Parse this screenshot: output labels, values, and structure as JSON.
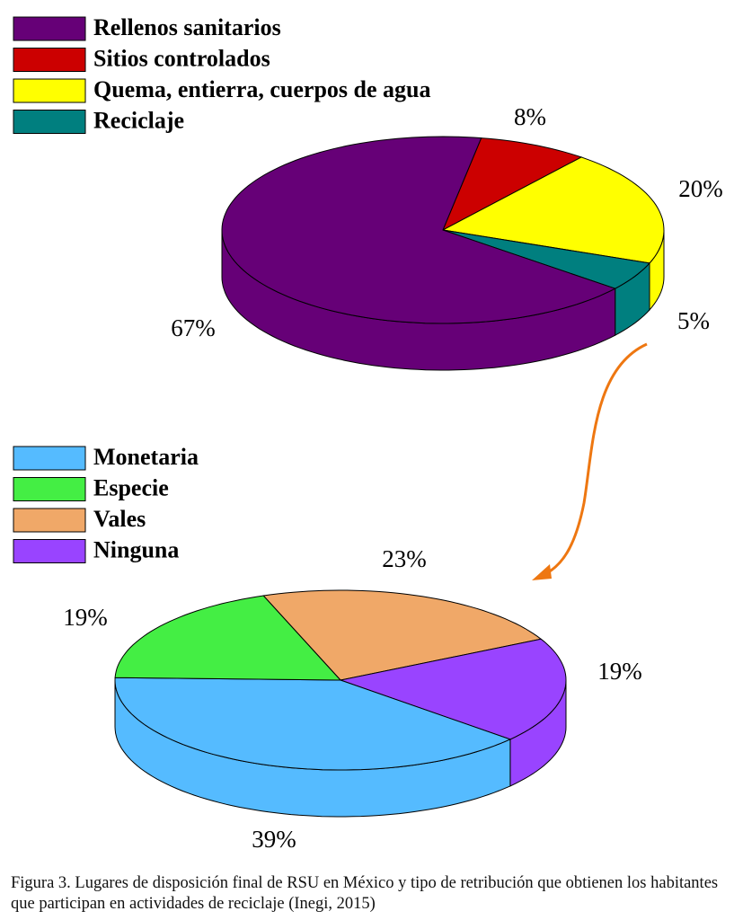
{
  "chart_data": [
    {
      "type": "pie",
      "categories": [
        "Rellenos sanitarios",
        "Sitios controlados",
        "Quema, entierra, cuerpos de agua",
        "Reciclaje"
      ],
      "values": [
        67,
        8,
        20,
        5
      ],
      "value_labels": [
        "67%",
        "8%",
        "20%",
        "5%"
      ],
      "colors": [
        "#660077",
        "#cc0000",
        "#ffff00",
        "#007f7f"
      ]
    },
    {
      "type": "pie",
      "categories": [
        "Monetaria",
        "Especie",
        "Vales",
        "Ninguna"
      ],
      "values": [
        39,
        19,
        23,
        19
      ],
      "value_labels": [
        "39%",
        "19%",
        "23%",
        "19%"
      ],
      "colors": [
        "#55bbff",
        "#44ee44",
        "#f0a868",
        "#9944ff"
      ]
    }
  ],
  "caption": "Figura 3. Lugares de disposición final de RSU en México y tipo de retribución que obtienen los habitantes que participan en actividades de reciclaje (Inegi, 2015)"
}
